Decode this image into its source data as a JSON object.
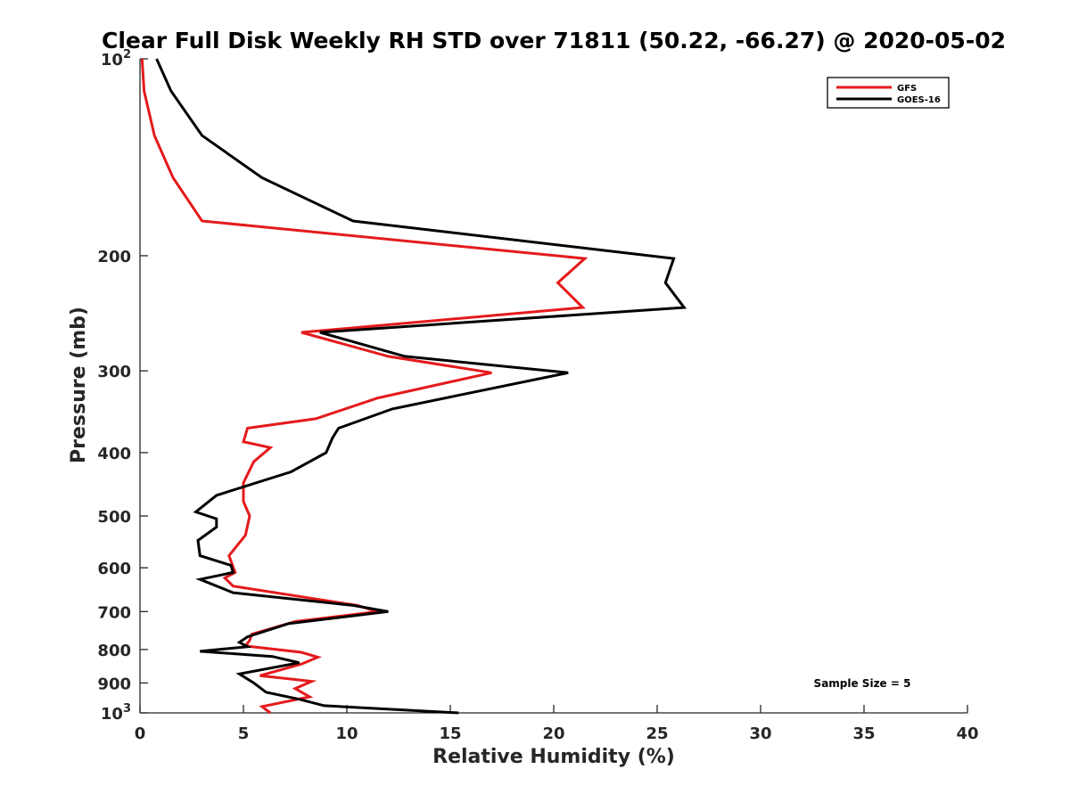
{
  "chart_data": {
    "type": "line",
    "title": "Clear Full Disk Weekly RH STD over 71811 (50.22, -66.27) @ 2020-05-02",
    "xlabel": "Relative Humidity (%)",
    "ylabel": "Pressure (mb)",
    "xlim": [
      0,
      40
    ],
    "ylim": [
      100,
      1000
    ],
    "yscale": "log",
    "y_reversed": true,
    "x_ticks": [
      "0",
      "5",
      "10",
      "15",
      "20",
      "25",
      "30",
      "35",
      "40"
    ],
    "x_tick_values": [
      0,
      5,
      10,
      15,
      20,
      25,
      30,
      35,
      40
    ],
    "y_ticks": [
      {
        "value": 100,
        "base": "10",
        "exp": "2"
      },
      {
        "value": 200,
        "base": "200",
        "exp": ""
      },
      {
        "value": 300,
        "base": "300",
        "exp": ""
      },
      {
        "value": 400,
        "base": "400",
        "exp": ""
      },
      {
        "value": 500,
        "base": "500",
        "exp": ""
      },
      {
        "value": 600,
        "base": "600",
        "exp": ""
      },
      {
        "value": 700,
        "base": "700",
        "exp": ""
      },
      {
        "value": 800,
        "base": "800",
        "exp": ""
      },
      {
        "value": 900,
        "base": "900",
        "exp": ""
      },
      {
        "value": 1000,
        "base": "10",
        "exp": "3"
      }
    ],
    "grid": false,
    "legend_position": "top-right",
    "annotation": "Sample Size = 5",
    "series": [
      {
        "name": "GFS",
        "color": "#e41a1c",
        "x": [
          0.1,
          0.2,
          0.7,
          1.6,
          3.0,
          21.5,
          20.2,
          21.4,
          7.8,
          12.0,
          17.0,
          11.5,
          8.5,
          5.2,
          5.0,
          6.3,
          5.5,
          5.0,
          5.0,
          5.3,
          5.1,
          4.3,
          4.6,
          4.1,
          4.5,
          10.5,
          11.5,
          7.5,
          5.4,
          5.3,
          5.1,
          7.8,
          8.6,
          7.8,
          5.8,
          8.3,
          7.5,
          8.2,
          5.9,
          6.3
        ],
        "y": [
          100,
          112,
          131,
          152,
          177,
          202,
          220,
          240,
          262,
          285,
          302,
          330,
          355,
          367,
          385,
          393,
          413,
          445,
          475,
          500,
          535,
          575,
          610,
          622,
          640,
          685,
          700,
          725,
          758,
          775,
          790,
          808,
          822,
          842,
          877,
          895,
          918,
          945,
          978,
          1000
        ]
      },
      {
        "name": "GOES-16",
        "color": "#000000",
        "x": [
          0.8,
          1.5,
          3.0,
          5.9,
          10.3,
          25.8,
          25.4,
          26.3,
          8.7,
          12.8,
          20.7,
          12.2,
          9.6,
          9.3,
          9.0,
          7.3,
          3.7,
          2.7,
          3.7,
          3.7,
          2.8,
          2.9,
          4.4,
          4.5,
          2.9,
          4.5,
          10.3,
          12.0,
          7.2,
          5.2,
          4.8,
          5.2,
          2.9,
          6.4,
          7.7,
          4.8,
          5.5,
          6.1,
          7.7,
          8.9,
          15.4
        ],
        "y": [
          100,
          112,
          131,
          152,
          177,
          202,
          220,
          240,
          262,
          285,
          302,
          343,
          367,
          380,
          400,
          428,
          465,
          493,
          505,
          520,
          545,
          575,
          595,
          610,
          625,
          655,
          685,
          700,
          730,
          765,
          780,
          792,
          805,
          820,
          838,
          872,
          900,
          930,
          953,
          975,
          1000
        ]
      }
    ]
  }
}
